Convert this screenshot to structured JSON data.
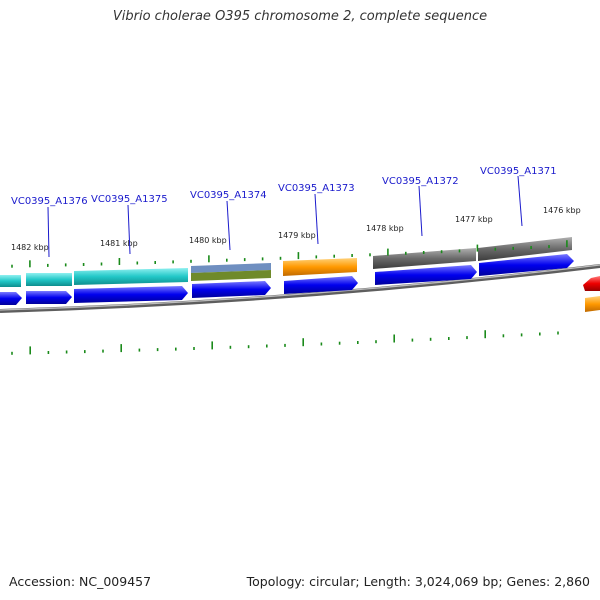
{
  "title": "Vibrio cholerae O395 chromosome 2, complete sequence",
  "accession": "Accession: NC_009457",
  "summary": "Topology: circular; Length: 3,024,069 bp; Genes: 2,860",
  "colors": {
    "backbone": "#8a8a8a",
    "tick": "#1a8a1a",
    "label": "#1a1acc",
    "cds": "#0000ee",
    "teal": "#22c8c8",
    "gray": "#6a6a6a",
    "orange": "#ff9900",
    "steel": "#6f8fc0",
    "olive": "#6f8a2a",
    "red": "#ee0000"
  },
  "kbp_labels": [
    {
      "text": "1482 kbp"
    },
    {
      "text": "1481 kbp"
    },
    {
      "text": "1480 kbp"
    },
    {
      "text": "1479 kbp"
    },
    {
      "text": "1478 kbp"
    },
    {
      "text": "1477 kbp"
    },
    {
      "text": "1476 kbp"
    }
  ],
  "gene_labels": [
    {
      "text": "VC0395_A1376"
    },
    {
      "text": "VC0395_A1375"
    },
    {
      "text": "VC0395_A1374"
    },
    {
      "text": "VC0395_A1373"
    },
    {
      "text": "VC0395_A1372"
    },
    {
      "text": "VC0395_A1371"
    }
  ]
}
